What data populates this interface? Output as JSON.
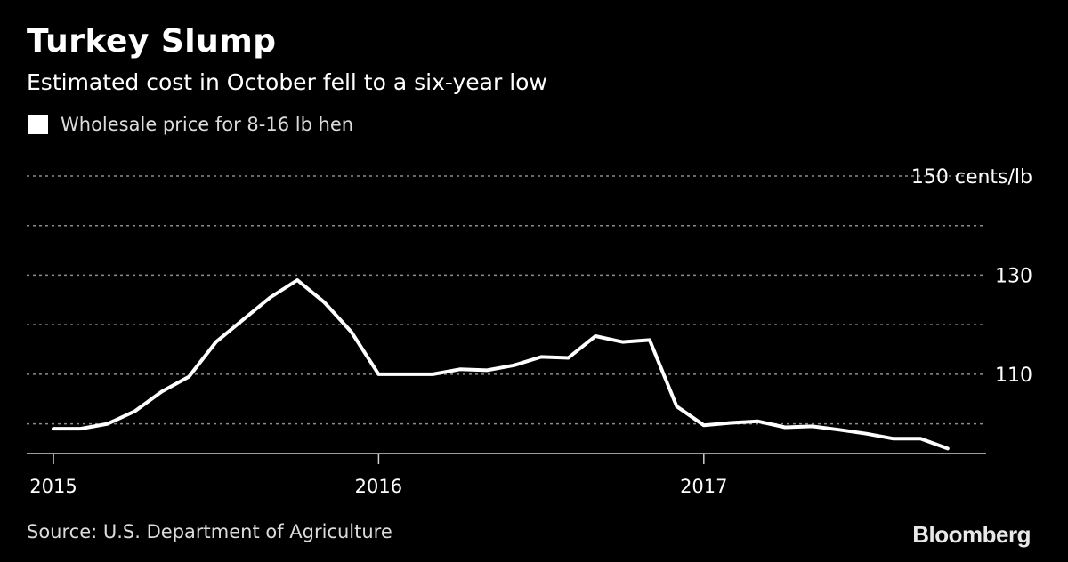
{
  "header": {
    "title": "Turkey Slump",
    "subtitle": "Estimated cost in October fell to a six-year low"
  },
  "legend": {
    "label": "Wholesale price for 8-16 lb hen"
  },
  "footer": {
    "source": "Source: U.S. Department of Agriculture",
    "brand": "Bloomberg"
  },
  "colors": {
    "background": "#000000",
    "line": "#ffffff",
    "grid": "#8c8c8c",
    "text": "#ffffff"
  },
  "chart_data": {
    "type": "line",
    "title": "Turkey Slump",
    "subtitle": "Estimated cost in October fell to a six-year low",
    "xlabel": "",
    "ylabel": "",
    "y_unit": "cents/lb",
    "ylim": [
      94,
      150
    ],
    "yticks": [
      100,
      110,
      120,
      130,
      140,
      150
    ],
    "ytick_labels": [
      "",
      "110",
      "",
      "130",
      "",
      "150 cents/lb"
    ],
    "xlim": [
      "2015-01",
      "2017-12"
    ],
    "xticks": [
      {
        "x": "2015-01",
        "label": "2015"
      },
      {
        "x": "2016-01",
        "label": "2016"
      },
      {
        "x": "2017-01",
        "label": "2017"
      }
    ],
    "grid": true,
    "legend_position": "top-left",
    "series": [
      {
        "name": "Wholesale price for 8-16 lb hen",
        "x": [
          "2015-01",
          "2015-02",
          "2015-03",
          "2015-04",
          "2015-05",
          "2015-06",
          "2015-07",
          "2015-08",
          "2015-09",
          "2015-10",
          "2015-11",
          "2015-12",
          "2016-01",
          "2016-02",
          "2016-03",
          "2016-04",
          "2016-05",
          "2016-06",
          "2016-07",
          "2016-08",
          "2016-09",
          "2016-10",
          "2016-11",
          "2016-12",
          "2017-01",
          "2017-02",
          "2017-03",
          "2017-04",
          "2017-05",
          "2017-06",
          "2017-07",
          "2017-08",
          "2017-09",
          "2017-10"
        ],
        "values": [
          99.0,
          99.0,
          100.0,
          102.5,
          106.5,
          109.5,
          116.5,
          121.0,
          125.5,
          129.0,
          124.5,
          118.5,
          110.0,
          110.0,
          110.0,
          111.0,
          110.8,
          111.8,
          113.5,
          113.3,
          117.7,
          116.5,
          116.9,
          103.5,
          99.7,
          100.2,
          100.5,
          99.3,
          99.5,
          98.8,
          98.0,
          97.0,
          97.0,
          95.0
        ]
      }
    ]
  }
}
